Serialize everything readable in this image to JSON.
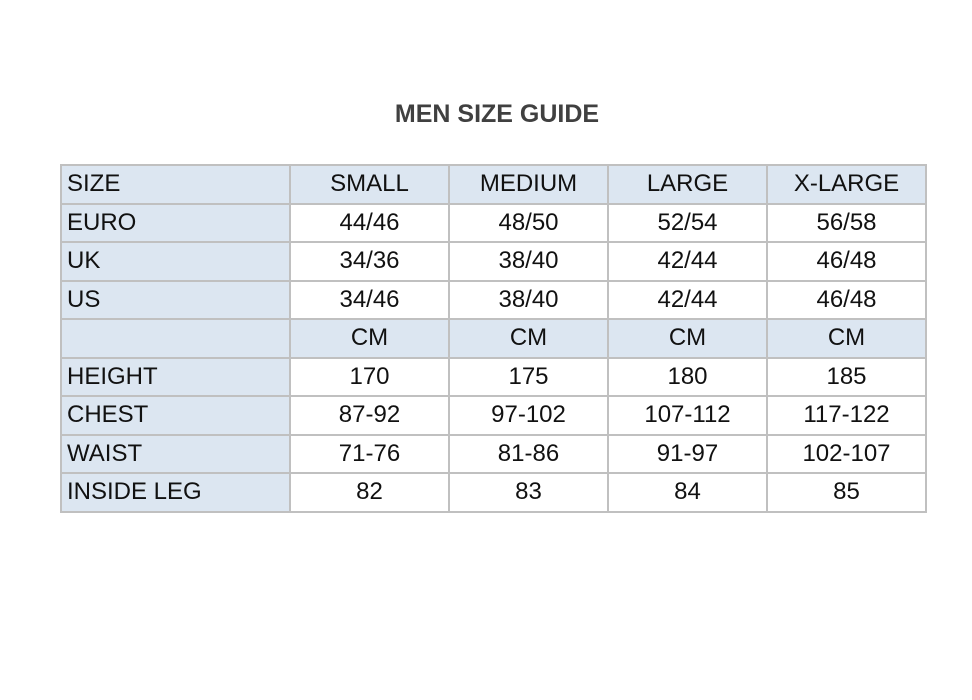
{
  "title": "MEN SIZE GUIDE",
  "colors": {
    "shade": "#dce6f1",
    "border": "#c0c0c0",
    "title": "#404040"
  },
  "table": {
    "header": [
      "SIZE",
      "SMALL",
      "MEDIUM",
      "LARGE",
      "X-LARGE"
    ],
    "rows": [
      {
        "cells": [
          "EURO",
          "44/46",
          "48/50",
          "52/54",
          "56/58"
        ],
        "shaded": false
      },
      {
        "cells": [
          "UK",
          "34/36",
          "38/40",
          "42/44",
          "46/48"
        ],
        "shaded": false
      },
      {
        "cells": [
          "US",
          "34/46",
          "38/40",
          "42/44",
          "46/48"
        ],
        "shaded": false
      },
      {
        "cells": [
          "",
          "CM",
          "CM",
          "CM",
          "CM"
        ],
        "shaded": true
      },
      {
        "cells": [
          "HEIGHT",
          "170",
          "175",
          "180",
          "185"
        ],
        "shaded": false
      },
      {
        "cells": [
          "CHEST",
          "87-92",
          "97-102",
          "107-112",
          "117-122"
        ],
        "shaded": false
      },
      {
        "cells": [
          "WAIST",
          "71-76",
          "81-86",
          "91-97",
          "102-107"
        ],
        "shaded": false
      },
      {
        "cells": [
          "INSIDE LEG",
          "82",
          "83",
          "84",
          "85"
        ],
        "shaded": false
      }
    ]
  }
}
